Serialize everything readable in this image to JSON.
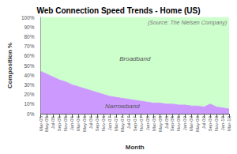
{
  "chart_data": {
    "type": "area",
    "stacked": true,
    "title": "Web Connection Speed Trends - Home (US)",
    "annotations": [
      "(Source: The Nielsen Company)"
    ],
    "xlabel": "Month",
    "ylabel": "Composition %",
    "categories": [
      "Mar-05",
      "May-05",
      "Jul-05",
      "Sep-05",
      "Nov-05",
      "Jan-06",
      "Mar-06",
      "May-06",
      "Jul-06",
      "Sep-06",
      "Nov-06",
      "Jan-07",
      "Mar-07",
      "May-07",
      "Jul-07",
      "Sep-07",
      "Nov-07",
      "Jan-08",
      "Mar-08",
      "May-08",
      "Jul-08",
      "Sep-08",
      "Nov-08",
      "Jan-09",
      "Mar-09",
      "May-09",
      "Jul-09",
      "Sep-09",
      "Nov-09",
      "Jan-10",
      "Mar-10"
    ],
    "series": [
      {
        "name": "Narrowband",
        "color": "#cc99ff",
        "values": [
          44,
          41,
          38,
          35,
          33,
          30,
          28,
          26,
          24,
          22,
          20,
          18,
          17,
          16,
          15,
          14,
          13,
          12,
          11,
          11,
          10,
          10,
          9,
          9,
          8,
          8,
          7,
          10,
          7,
          6,
          5
        ]
      },
      {
        "name": "Broadband",
        "color": "#ccffcc",
        "values": [
          56,
          59,
          62,
          65,
          67,
          70,
          72,
          74,
          76,
          78,
          80,
          82,
          83,
          84,
          85,
          86,
          87,
          88,
          89,
          89,
          90,
          90,
          91,
          91,
          92,
          92,
          93,
          90,
          93,
          94,
          95
        ]
      }
    ],
    "ylim": [
      0,
      100
    ],
    "yticks": [
      {
        "value": 0,
        "label": "0%"
      },
      {
        "value": 10,
        "label": "10%"
      },
      {
        "value": 20,
        "label": "20%"
      },
      {
        "value": 30,
        "label": "30%"
      },
      {
        "value": 40,
        "label": "40%"
      },
      {
        "value": 50,
        "label": "50%"
      },
      {
        "value": 60,
        "label": "60%"
      },
      {
        "value": 70,
        "label": "70%"
      },
      {
        "value": 80,
        "label": "80%"
      },
      {
        "value": 90,
        "label": "90%"
      },
      {
        "value": 100,
        "label": "100%"
      }
    ],
    "grid": true
  }
}
